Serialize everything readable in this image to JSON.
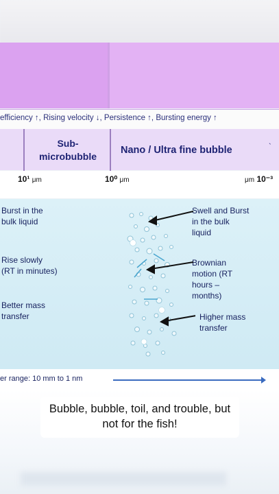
{
  "header_row": {
    "left_label": "",
    "right_label": ""
  },
  "property_line": "efficiency ↑, Rising velocity ↓, Persistence ↑, Bursting energy ↑",
  "categories": {
    "sub_micro": [
      "Sub-",
      "microbubble"
    ],
    "nano": "Nano / Ultra fine bubble"
  },
  "scale": {
    "s1": "10¹",
    "s1_unit": "μm",
    "s2": "10⁰",
    "s2_unit": "μm",
    "s3_unit": "μm",
    "s3": "10⁻³"
  },
  "left_notes": [
    [
      "Burst in the",
      "bulk liquid"
    ],
    [
      "Rise slowly",
      "(RT in minutes)"
    ],
    [
      "Better mass",
      "transfer"
    ]
  ],
  "right_notes": [
    [
      "Swell and Burst",
      "in the bulk",
      "liquid"
    ],
    [
      "Brownian",
      "motion (RT",
      "hours –",
      "months)"
    ],
    [
      "Higher mass",
      "transfer"
    ]
  ],
  "range_text": "er range: 10 mm to 1 nm",
  "caption": "Bubble, bubble, toil, and trouble, but not for the fish!"
}
